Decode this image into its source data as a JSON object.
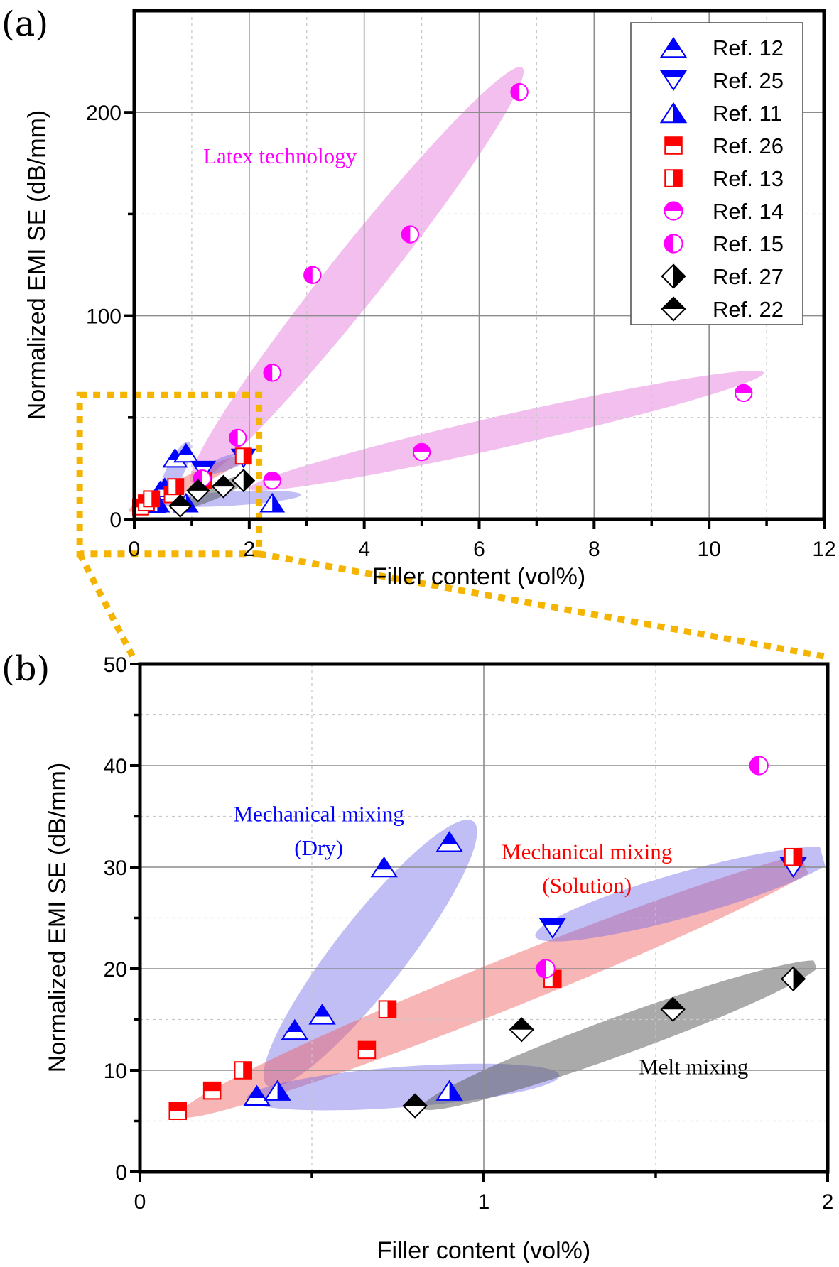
{
  "chart_data": [
    {
      "id": "a",
      "type": "scatter",
      "panel_label": "(a)",
      "xlabel": "Filler content (vol%)",
      "ylabel": "Normalized EMI SE (dB/mm)",
      "xlim": [
        0,
        12
      ],
      "ylim": [
        0,
        250
      ],
      "xticks": [
        0,
        2,
        4,
        6,
        8,
        10,
        12
      ],
      "yticks": [
        0,
        100,
        200
      ],
      "x_minor": [
        1,
        3,
        5,
        7,
        9,
        11
      ],
      "y_minor": [
        50,
        150
      ],
      "grid": true,
      "legend_position": "top-right",
      "annotations": [
        {
          "text": "Latex technology",
          "x": 1.2,
          "y": 175,
          "color": "#ff00ff"
        }
      ],
      "regions": [
        {
          "name": "latex-steep",
          "color": "#e066d6",
          "cx": 3.7,
          "cy": 108,
          "rx_data": 3.75,
          "ry_data": 9,
          "angle_pts": [
            [
              1.0,
              18
            ],
            [
              6.75,
              222
            ]
          ]
        },
        {
          "name": "latex-shallow",
          "color": "#e066d6",
          "from": [
            2.0,
            15
          ],
          "to": [
            10.95,
            72
          ],
          "half_width_y": 8
        },
        {
          "name": "dry-mixing",
          "color": "#6a63e8",
          "from": [
            0.45,
            8
          ],
          "to": [
            0.95,
            38
          ],
          "half_width_x": 0.17
        },
        {
          "name": "solution-mixing",
          "color": "#f05a5a",
          "from": [
            -0.1,
            4
          ],
          "to": [
            2.0,
            32
          ],
          "half_width_y": 3
        },
        {
          "name": "dry-mixing-low",
          "color": "#6a63e8",
          "from": [
            0.35,
            8
          ],
          "to": [
            2.9,
            12
          ],
          "half_width_y": 3
        },
        {
          "name": "melt-mixing",
          "color": "#555555",
          "from": [
            0.8,
            6
          ],
          "to": [
            2.0,
            21
          ],
          "half_width_y": 2.5
        },
        {
          "name": "ref25-region",
          "color": "#6a63e8",
          "from": [
            1.15,
            23
          ],
          "to": [
            2.05,
            32
          ],
          "half_width_y": 2.5
        }
      ],
      "zoom_box": {
        "x0": -0.95,
        "x1": 2.17,
        "y0": -17,
        "y1": 61,
        "color": "#f5b400"
      }
    },
    {
      "id": "b",
      "type": "scatter",
      "panel_label": "(b)",
      "xlabel": "Filler content (vol%)",
      "ylabel": "Normalized EMI SE (dB/mm)",
      "xlim": [
        0,
        2
      ],
      "ylim": [
        0,
        50
      ],
      "xticks": [
        0,
        1,
        2
      ],
      "yticks": [
        0,
        10,
        20,
        30,
        40,
        50
      ],
      "x_minor": [
        0.5,
        1.5
      ],
      "y_minor": [
        5,
        15,
        25,
        35,
        45
      ],
      "grid": true,
      "annotations": [
        {
          "text": "Mechanical mixing",
          "x": 0.52,
          "y": 34.5,
          "color": "#0000ff"
        },
        {
          "text": "(Dry)",
          "x": 0.52,
          "y": 31.2,
          "color": "#0000ff"
        },
        {
          "text": "Mechanical mixing",
          "x": 1.3,
          "y": 30.8,
          "color": "#ff0000"
        },
        {
          "text": "(Solution)",
          "x": 1.3,
          "y": 27.5,
          "color": "#ff0000"
        },
        {
          "text": "Melt mixing",
          "x": 1.61,
          "y": 9.6,
          "color": "#000000"
        }
      ],
      "regions": [
        {
          "name": "dry-mixing",
          "color": "#6a63e8",
          "from": [
            0.37,
            8.5
          ],
          "to": [
            0.97,
            34.5
          ],
          "half_width_x": 0.13
        },
        {
          "name": "solution-mixing",
          "color": "#f05a5a",
          "from": [
            0.11,
            5.5
          ],
          "to": [
            2.02,
            31.5
          ],
          "half_width_y": 2.6
        },
        {
          "name": "dry-mixing-low",
          "color": "#6a63e8",
          "from": [
            0.31,
            7.2
          ],
          "to": [
            1.22,
            9.5
          ],
          "half_width_y": 2.0
        },
        {
          "name": "melt-mixing",
          "color": "#555555",
          "from": [
            0.82,
            6.3
          ],
          "to": [
            1.98,
            20.6
          ],
          "half_width_y": 2.0
        },
        {
          "name": "ref25-region",
          "color": "#6a63e8",
          "from": [
            1.15,
            23.2
          ],
          "to": [
            2.03,
            31.5
          ],
          "half_width_y": 2.3
        }
      ]
    }
  ],
  "series": [
    {
      "name": "Ref. 12",
      "marker": "triangle-up",
      "fill": "top",
      "color": "#0000ff",
      "a": [
        [
          0.34,
          7.5
        ],
        [
          0.45,
          14
        ],
        [
          0.53,
          15.5
        ],
        [
          0.71,
          30
        ],
        [
          0.9,
          32.5
        ]
      ],
      "b": [
        [
          0.34,
          7.5
        ],
        [
          0.45,
          14
        ],
        [
          0.53,
          15.5
        ],
        [
          0.71,
          30
        ],
        [
          0.9,
          32.5
        ]
      ]
    },
    {
      "name": "Ref. 25",
      "marker": "triangle-down",
      "fill": "top",
      "color": "#0000ff",
      "a": [
        [
          1.2,
          24
        ],
        [
          1.9,
          30
        ]
      ],
      "b": [
        [
          1.2,
          24
        ],
        [
          1.9,
          30
        ]
      ]
    },
    {
      "name": "Ref. 11",
      "marker": "triangle-up",
      "fill": "right",
      "color": "#0000ff",
      "a": [
        [
          0.4,
          8
        ],
        [
          0.9,
          8
        ],
        [
          2.4,
          8
        ]
      ],
      "b": [
        [
          0.4,
          8
        ],
        [
          0.9,
          8
        ]
      ]
    },
    {
      "name": "Ref. 26",
      "marker": "square",
      "fill": "top",
      "color": "#ff0000",
      "a": [
        [
          0.11,
          6
        ],
        [
          0.21,
          8
        ],
        [
          0.66,
          12
        ]
      ],
      "b": [
        [
          0.11,
          6
        ],
        [
          0.21,
          8
        ],
        [
          0.66,
          12
        ]
      ]
    },
    {
      "name": "Ref. 13",
      "marker": "square",
      "fill": "right",
      "color": "#ff0000",
      "a": [
        [
          0.3,
          10
        ],
        [
          0.72,
          16
        ],
        [
          1.2,
          19
        ],
        [
          1.9,
          31
        ]
      ],
      "b": [
        [
          0.3,
          10
        ],
        [
          0.72,
          16
        ],
        [
          1.2,
          19
        ],
        [
          1.9,
          31
        ]
      ]
    },
    {
      "name": "Ref. 14",
      "marker": "circle",
      "fill": "top",
      "color": "#ff00ff",
      "a": [
        [
          2.4,
          19
        ],
        [
          5.0,
          33
        ],
        [
          10.6,
          62
        ]
      ],
      "b": []
    },
    {
      "name": "Ref. 15",
      "marker": "circle",
      "fill": "left",
      "color": "#ff00ff",
      "a": [
        [
          1.18,
          20
        ],
        [
          1.8,
          40
        ],
        [
          2.4,
          72
        ],
        [
          3.1,
          120
        ],
        [
          4.8,
          140
        ],
        [
          6.7,
          210
        ]
      ],
      "b": [
        [
          1.18,
          20
        ],
        [
          1.8,
          40
        ]
      ]
    },
    {
      "name": "Ref. 27",
      "marker": "diamond",
      "fill": "right",
      "color": "#000000",
      "a": [
        [
          1.9,
          19
        ]
      ],
      "b": [
        [
          1.9,
          19
        ]
      ]
    },
    {
      "name": "Ref. 22",
      "marker": "diamond",
      "fill": "top",
      "color": "#000000",
      "a": [
        [
          0.8,
          6.5
        ],
        [
          1.11,
          14
        ],
        [
          1.55,
          16
        ]
      ],
      "b": [
        [
          0.8,
          6.5
        ],
        [
          1.11,
          14
        ],
        [
          1.55,
          16
        ]
      ]
    }
  ]
}
